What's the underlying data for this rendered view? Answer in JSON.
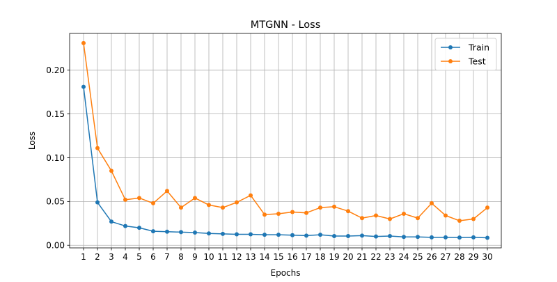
{
  "chart_data": {
    "type": "line",
    "title": "MTGNN - Loss",
    "xlabel": "Epochs",
    "ylabel": "Loss",
    "x": [
      1,
      2,
      3,
      4,
      5,
      6,
      7,
      8,
      9,
      10,
      11,
      12,
      13,
      14,
      15,
      16,
      17,
      18,
      19,
      20,
      21,
      22,
      23,
      24,
      25,
      26,
      27,
      28,
      29,
      30
    ],
    "xlim": [
      0,
      31
    ],
    "ylim": [
      -0.003,
      0.242
    ],
    "yticks": [
      0.0,
      0.05,
      0.1,
      0.15,
      0.2
    ],
    "ytick_labels": [
      "0.00",
      "0.05",
      "0.10",
      "0.15",
      "0.20"
    ],
    "grid": true,
    "legend_position": "top-right",
    "series": [
      {
        "name": "Train",
        "color": "#1f77b4",
        "marker": "circle",
        "values": [
          0.181,
          0.049,
          0.027,
          0.022,
          0.02,
          0.016,
          0.0155,
          0.015,
          0.0145,
          0.0135,
          0.013,
          0.0125,
          0.0125,
          0.012,
          0.012,
          0.0115,
          0.011,
          0.012,
          0.0105,
          0.0105,
          0.011,
          0.01,
          0.0105,
          0.0095,
          0.0095,
          0.009,
          0.009,
          0.0088,
          0.009,
          0.0085
        ]
      },
      {
        "name": "Test",
        "color": "#ff7f0e",
        "marker": "circle",
        "values": [
          0.231,
          0.111,
          0.085,
          0.052,
          0.054,
          0.048,
          0.062,
          0.043,
          0.054,
          0.046,
          0.043,
          0.049,
          0.057,
          0.035,
          0.036,
          0.038,
          0.037,
          0.043,
          0.044,
          0.039,
          0.031,
          0.034,
          0.03,
          0.036,
          0.031,
          0.048,
          0.034,
          0.028,
          0.03,
          0.043
        ]
      }
    ]
  }
}
